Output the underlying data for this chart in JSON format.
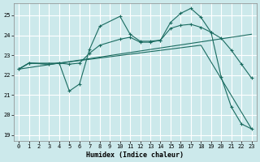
{
  "xlabel": "Humidex (Indice chaleur)",
  "bg_color": "#cce9eb",
  "grid_color": "#ffffff",
  "line_color": "#1a6b60",
  "xlim": [
    -0.5,
    23.5
  ],
  "ylim": [
    18.7,
    25.6
  ],
  "yticks": [
    19,
    20,
    21,
    22,
    23,
    24,
    25
  ],
  "xticks": [
    0,
    1,
    2,
    3,
    4,
    5,
    6,
    7,
    8,
    9,
    10,
    11,
    12,
    13,
    14,
    15,
    16,
    17,
    18,
    19,
    20,
    21,
    22,
    23
  ],
  "line1_x": [
    0,
    1,
    3,
    4,
    5,
    6,
    7,
    8,
    10,
    11,
    12,
    13,
    14,
    15,
    16,
    17,
    18,
    19,
    20,
    21,
    22,
    23
  ],
  "line1_y": [
    22.3,
    22.6,
    22.55,
    22.6,
    21.2,
    21.55,
    23.3,
    24.45,
    24.95,
    24.05,
    23.7,
    23.7,
    23.75,
    24.65,
    25.1,
    25.35,
    24.9,
    24.15,
    21.9,
    20.4,
    19.55,
    19.3
  ],
  "line2_x": [
    0,
    1,
    3,
    4,
    5,
    6,
    7,
    8,
    10,
    11,
    12,
    13,
    14,
    15,
    16,
    17,
    18,
    19,
    20,
    21,
    22,
    23
  ],
  "line2_y": [
    22.3,
    22.6,
    22.55,
    22.6,
    22.55,
    22.6,
    23.1,
    23.5,
    23.8,
    23.9,
    23.65,
    23.65,
    23.75,
    24.35,
    24.5,
    24.55,
    24.4,
    24.15,
    23.85,
    23.25,
    22.55,
    21.85
  ],
  "line3_x": [
    0,
    1,
    4,
    23
  ],
  "line3_y": [
    22.3,
    22.6,
    22.6,
    24.05
  ],
  "line4_x": [
    0,
    4,
    18,
    23
  ],
  "line4_y": [
    22.3,
    22.6,
    23.5,
    19.3
  ]
}
